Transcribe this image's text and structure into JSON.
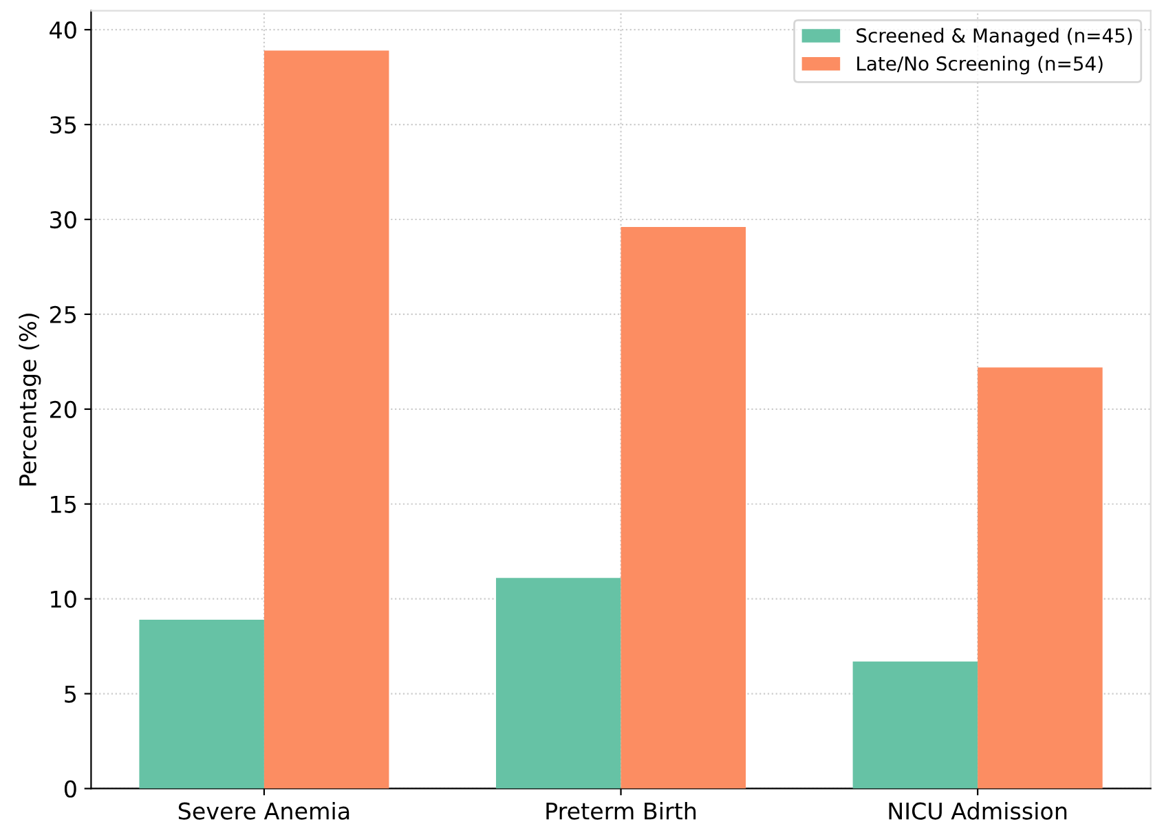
{
  "chart_data": {
    "type": "bar",
    "ylabel": "Percentage (%)",
    "categories": [
      "Severe Anemia",
      "Preterm Birth",
      "NICU Admission"
    ],
    "series": [
      {
        "name": "Screened & Managed (n=45)",
        "color": "#66c2a5",
        "values": [
          8.9,
          11.1,
          6.7
        ]
      },
      {
        "name": "Late/No Screening (n=54)",
        "color": "#fc8d62",
        "values": [
          38.9,
          29.6,
          22.2
        ]
      }
    ],
    "ylim": [
      0,
      41
    ],
    "yticks": [
      0,
      5,
      10,
      15,
      20,
      25,
      30,
      35,
      40
    ],
    "grid": true,
    "legend": "top right"
  }
}
